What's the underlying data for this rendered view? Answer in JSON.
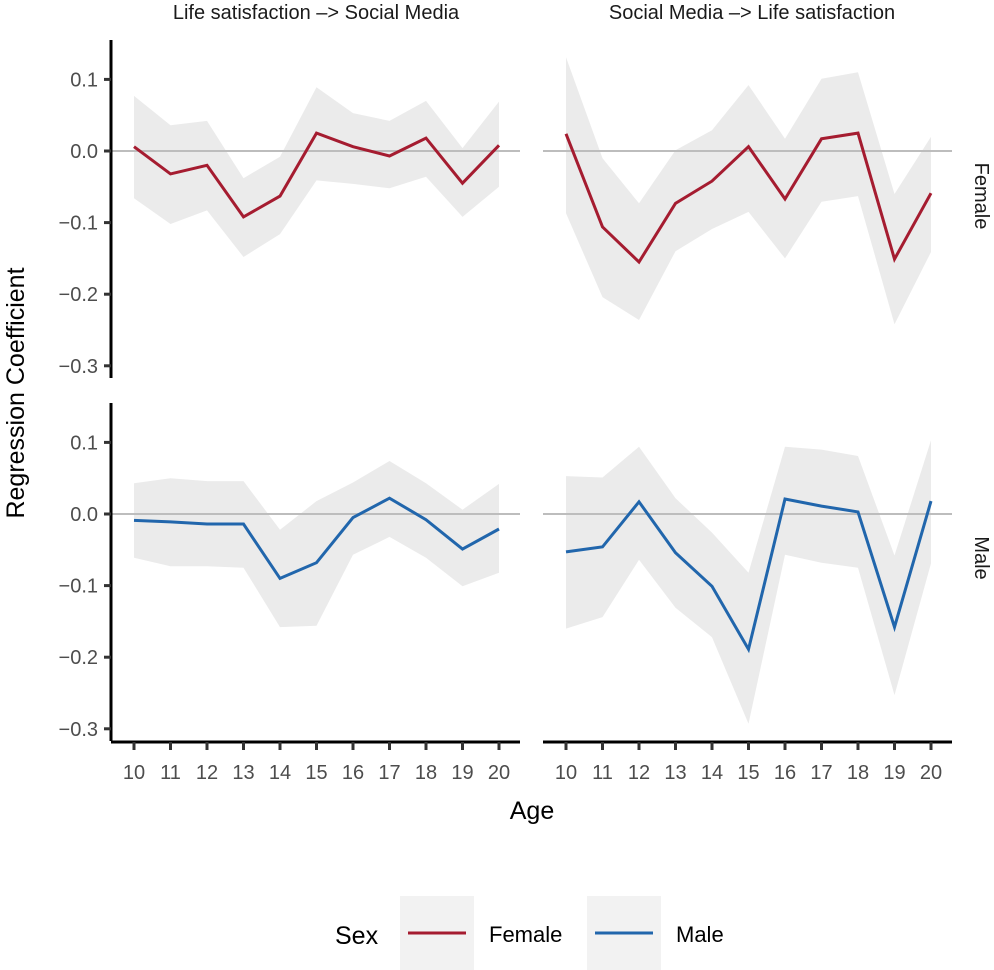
{
  "chart_data": {
    "type": "line",
    "ylabel": "Regression Coefficient",
    "xlabel": "Age",
    "x": [
      10,
      11,
      12,
      13,
      14,
      15,
      16,
      17,
      18,
      19,
      20
    ],
    "x_ticks": [
      "10",
      "11",
      "12",
      "13",
      "14",
      "15",
      "16",
      "17",
      "18",
      "19",
      "20"
    ],
    "ylim": [
      -0.3,
      0.1
    ],
    "y_ticks": [
      "0.1",
      "0.0",
      "−0.1",
      "−0.2",
      "−0.3"
    ],
    "y_tick_values": [
      0.1,
      0.0,
      -0.1,
      -0.2,
      -0.3
    ],
    "reference_line": 0.0,
    "columns": [
      "Life satisfaction –> Social Media",
      "Social Media –> Life satisfaction"
    ],
    "rows": [
      "Female",
      "Male"
    ],
    "legend": {
      "title": "Sex",
      "position": "bottom",
      "entries": [
        {
          "label": "Female",
          "color": "#a51c30"
        },
        {
          "label": "Male",
          "color": "#2166ac"
        }
      ]
    },
    "ribbon_color": "#ebebeb",
    "panels": [
      {
        "row": "Female",
        "column": "Life satisfaction –> Social Media",
        "color": "#a51c30",
        "values": [
          0.006,
          -0.032,
          -0.02,
          -0.092,
          -0.063,
          0.025,
          0.006,
          -0.007,
          0.018,
          -0.045,
          0.008
        ],
        "upper": [
          0.077,
          0.036,
          0.042,
          -0.038,
          -0.008,
          0.089,
          0.053,
          0.042,
          0.07,
          0.004,
          0.069
        ],
        "lower": [
          -0.066,
          -0.102,
          -0.083,
          -0.148,
          -0.116,
          -0.041,
          -0.046,
          -0.052,
          -0.036,
          -0.092,
          -0.05
        ]
      },
      {
        "row": "Female",
        "column": "Social Media –> Life satisfaction",
        "color": "#a51c30",
        "values": [
          0.024,
          -0.106,
          -0.155,
          -0.073,
          -0.042,
          0.006,
          -0.067,
          0.017,
          0.025,
          -0.151,
          -0.059
        ],
        "upper": [
          0.131,
          -0.01,
          -0.073,
          0.001,
          0.029,
          0.092,
          0.017,
          0.101,
          0.11,
          -0.06,
          0.02
        ],
        "lower": [
          -0.087,
          -0.204,
          -0.236,
          -0.14,
          -0.109,
          -0.085,
          -0.15,
          -0.071,
          -0.063,
          -0.242,
          -0.141
        ]
      },
      {
        "row": "Male",
        "column": "Life satisfaction –> Social Media",
        "color": "#2166ac",
        "values": [
          -0.009,
          -0.011,
          -0.014,
          -0.014,
          -0.09,
          -0.068,
          -0.005,
          0.022,
          -0.008,
          -0.049,
          -0.021
        ],
        "upper": [
          0.043,
          0.05,
          0.046,
          0.046,
          -0.022,
          0.018,
          0.044,
          0.074,
          0.043,
          0.006,
          0.042
        ],
        "lower": [
          -0.061,
          -0.073,
          -0.073,
          -0.075,
          -0.158,
          -0.156,
          -0.057,
          -0.032,
          -0.061,
          -0.101,
          -0.082
        ]
      },
      {
        "row": "Male",
        "column": "Social Media –> Life satisfaction",
        "color": "#2166ac",
        "values": [
          -0.053,
          -0.046,
          0.017,
          -0.054,
          -0.101,
          -0.189,
          0.021,
          0.011,
          0.003,
          -0.158,
          0.018
        ],
        "upper": [
          0.053,
          0.051,
          0.094,
          0.022,
          -0.026,
          -0.082,
          0.094,
          0.09,
          0.081,
          -0.058,
          0.103
        ],
        "lower": [
          -0.16,
          -0.144,
          -0.064,
          -0.131,
          -0.172,
          -0.293,
          -0.057,
          -0.068,
          -0.075,
          -0.253,
          -0.069
        ]
      }
    ]
  }
}
